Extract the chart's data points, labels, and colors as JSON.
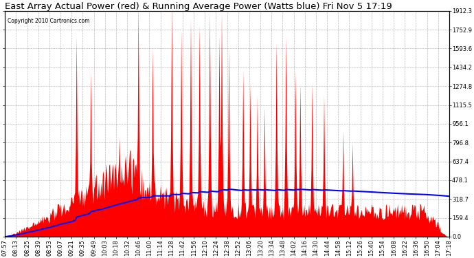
{
  "title": "East Array Actual Power (red) & Running Average Power (Watts blue) Fri Nov 5 17:19",
  "copyright": "Copyright 2010 Cartronics.com",
  "ylabel_right_ticks": [
    0.0,
    159.4,
    318.7,
    478.1,
    637.4,
    796.8,
    956.1,
    1115.5,
    1274.8,
    1434.2,
    1593.6,
    1752.9,
    1912.3
  ],
  "ymax": 1912.3,
  "ymin": 0.0,
  "background_color": "#ffffff",
  "plot_background": "#ffffff",
  "grid_color": "#aaaaaa",
  "actual_color": "#ff0000",
  "average_color": "#0000ff",
  "title_fontsize": 9.5,
  "tick_fontsize": 6.0,
  "figsize": [
    6.9,
    3.75
  ],
  "dpi": 100,
  "x_tick_labels": [
    "07:57",
    "08:13",
    "08:25",
    "08:39",
    "08:53",
    "09:07",
    "09:21",
    "09:35",
    "09:49",
    "10:03",
    "10:18",
    "10:32",
    "10:46",
    "11:00",
    "11:14",
    "11:28",
    "11:42",
    "11:56",
    "12:10",
    "12:24",
    "12:38",
    "12:52",
    "13:06",
    "13:20",
    "13:34",
    "13:48",
    "14:02",
    "14:16",
    "14:30",
    "14:44",
    "14:58",
    "15:12",
    "15:26",
    "15:40",
    "15:54",
    "16:08",
    "16:22",
    "16:36",
    "16:50",
    "17:04",
    "17:18"
  ]
}
